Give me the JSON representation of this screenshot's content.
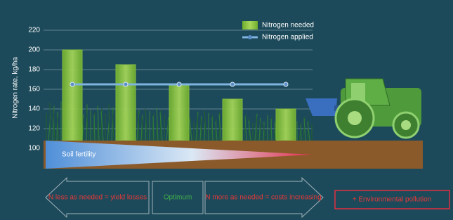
{
  "chart_data": {
    "type": "bar",
    "y_label": "Nitrogen rate, kg/ha",
    "categories": [
      null,
      null,
      null,
      null,
      null
    ],
    "series": [
      {
        "name": "Nitrogen needed",
        "type": "bar",
        "color": "#8dc63f",
        "values": [
          200,
          185,
          164,
          150,
          140
        ]
      },
      {
        "name": "Nitrogen applied",
        "type": "line",
        "color": "#7fb3e0",
        "values": [
          165,
          165,
          165,
          165,
          165
        ]
      }
    ],
    "ylim": [
      100,
      220
    ],
    "yticks": [
      100,
      120,
      140,
      160,
      180,
      200,
      220
    ],
    "grid": true,
    "legend": "top-right",
    "annotations": {
      "soil": "Soil fertility",
      "less": "N less as needed = yield losses",
      "optimum": "Optimum",
      "more": "N more as needed = costs increasing",
      "pollution": "+ Environmental pollution"
    }
  }
}
